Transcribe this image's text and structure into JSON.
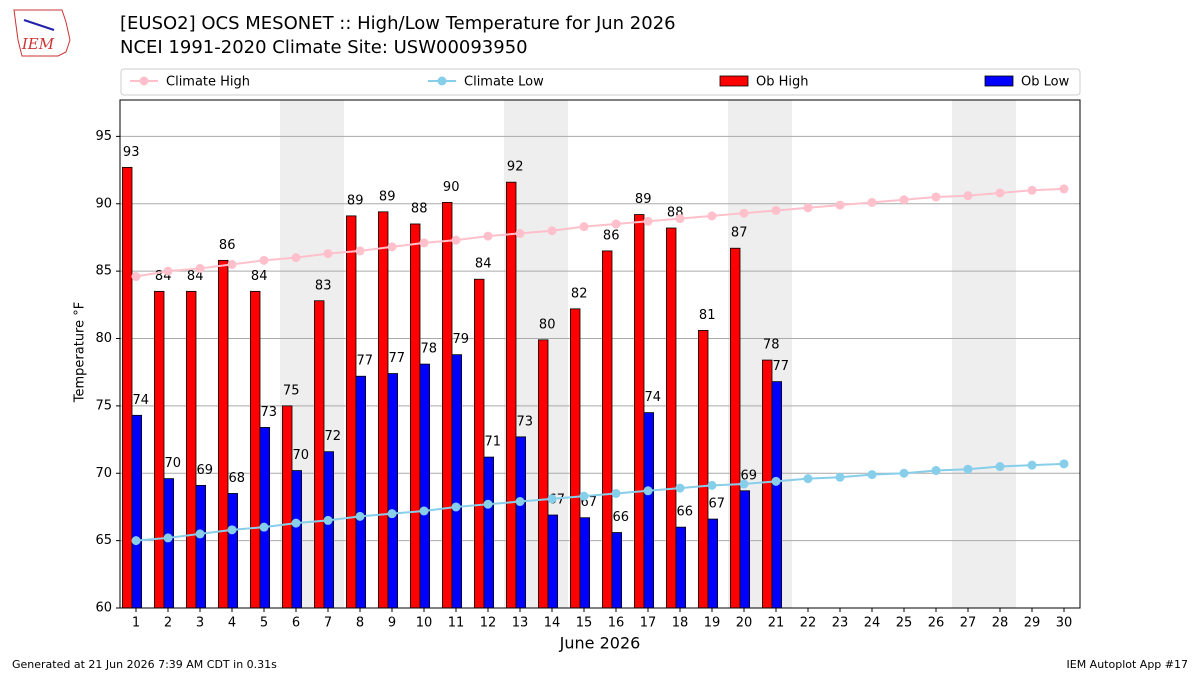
{
  "chart_data": {
    "type": "bar",
    "title": "[EUSO2] OCS MESONET :: High/Low Temperature for Jun 2026",
    "subtitle": "NCEI 1991-2020 Climate Site: USW00093950",
    "logo": "IEM",
    "y_label": "Temperature °F",
    "x_label": "June 2026",
    "footer_left": "Generated at 21 Jun 2026 7:39 AM CDT in 0.31s",
    "footer_right": "IEM Autoplot App #17",
    "x": [
      1,
      2,
      3,
      4,
      5,
      6,
      7,
      8,
      9,
      10,
      11,
      12,
      13,
      14,
      15,
      16,
      17,
      18,
      19,
      20,
      21,
      22,
      23,
      24,
      25,
      26,
      27,
      28,
      29,
      30
    ],
    "xlim": [
      0.5,
      30.5
    ],
    "xticks": [
      1,
      2,
      3,
      4,
      5,
      6,
      7,
      8,
      9,
      10,
      11,
      12,
      13,
      14,
      15,
      16,
      17,
      18,
      19,
      20,
      21,
      22,
      23,
      24,
      25,
      26,
      27,
      28,
      29,
      30
    ],
    "ylim": [
      60,
      97.7
    ],
    "yticks": [
      60,
      65,
      70,
      75,
      80,
      85,
      90,
      95
    ],
    "grid": true,
    "weekend_spans": [
      [
        5.5,
        7.5
      ],
      [
        12.5,
        14.5
      ],
      [
        19.5,
        21.5
      ],
      [
        26.5,
        28.5
      ]
    ],
    "series": [
      {
        "name": "Climate High",
        "type": "line",
        "color": "#ffc0cb",
        "values": [
          84.6,
          85.0,
          85.2,
          85.5,
          85.8,
          86.0,
          86.3,
          86.5,
          86.8,
          87.1,
          87.3,
          87.6,
          87.8,
          88.0,
          88.3,
          88.5,
          88.7,
          88.9,
          89.1,
          89.3,
          89.5,
          89.7,
          89.9,
          90.1,
          90.3,
          90.5,
          90.6,
          90.8,
          91.0,
          91.1
        ]
      },
      {
        "name": "Climate Low",
        "type": "line",
        "color": "#87ceeb",
        "values": [
          65.0,
          65.2,
          65.5,
          65.8,
          66.0,
          66.3,
          66.5,
          66.8,
          67.0,
          67.2,
          67.5,
          67.7,
          67.9,
          68.1,
          68.3,
          68.5,
          68.7,
          68.9,
          69.1,
          69.2,
          69.4,
          69.6,
          69.7,
          69.9,
          70.0,
          70.2,
          70.3,
          70.5,
          70.6,
          70.7
        ]
      },
      {
        "name": "Ob High",
        "type": "bar",
        "color": "#ff0000",
        "values": [
          92.7,
          83.5,
          83.5,
          85.8,
          83.5,
          75.0,
          82.8,
          89.1,
          89.4,
          88.5,
          90.1,
          84.4,
          91.6,
          79.9,
          82.2,
          86.5,
          89.2,
          88.2,
          80.6,
          86.7,
          78.4,
          null,
          null,
          null,
          null,
          null,
          null,
          null,
          null,
          null
        ],
        "value_labels": [
          "93",
          "84",
          "84",
          "86",
          "84",
          "75",
          "83",
          "89",
          "89",
          "88",
          "90",
          "84",
          "92",
          "80",
          "82",
          "86",
          "89",
          "88",
          "81",
          "87",
          "78",
          null,
          null,
          null,
          null,
          null,
          null,
          null,
          null,
          null
        ]
      },
      {
        "name": "Ob Low",
        "type": "bar",
        "color": "#0000ff",
        "values": [
          74.3,
          69.6,
          69.1,
          68.5,
          73.4,
          70.2,
          71.6,
          77.2,
          77.4,
          78.1,
          78.8,
          71.2,
          72.7,
          66.9,
          66.7,
          65.6,
          74.5,
          66.0,
          66.6,
          68.7,
          76.8,
          null,
          null,
          null,
          null,
          null,
          null,
          null,
          null,
          null
        ],
        "value_labels": [
          "74",
          "70",
          "69",
          "68",
          "73",
          "70",
          "72",
          "77",
          "77",
          "78",
          "79",
          "71",
          "73",
          "67",
          "67",
          "66",
          "74",
          "66",
          "67",
          "69",
          "77",
          null,
          null,
          null,
          null,
          null,
          null,
          null,
          null,
          null
        ]
      }
    ]
  }
}
